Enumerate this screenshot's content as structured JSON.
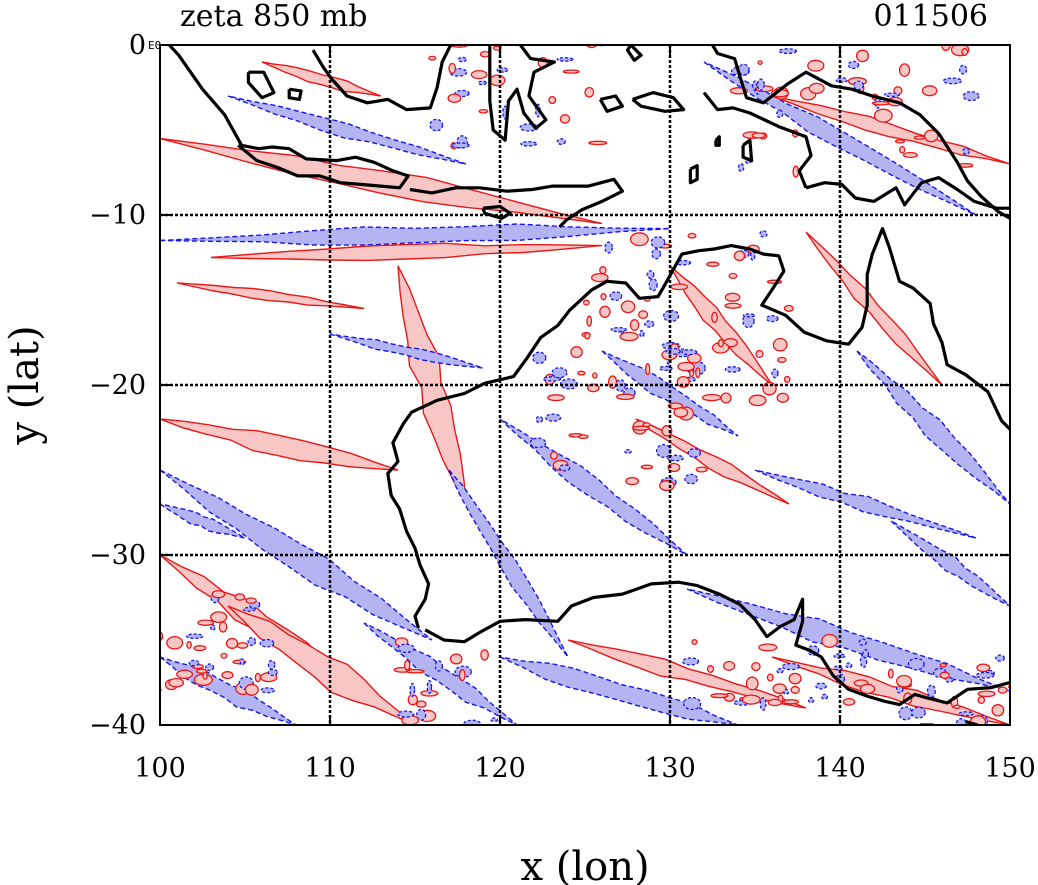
{
  "header": {
    "title": "zeta 850 mb",
    "timestamp": "011506",
    "corner_label": "E0"
  },
  "chart_data": {
    "type": "heatmap",
    "variable": "zeta",
    "level": "850 mb",
    "xlabel": "x (lon)",
    "ylabel": "y (lat)",
    "xlim": [
      100,
      150
    ],
    "ylim": [
      -40,
      0
    ],
    "x_ticks": [
      100,
      110,
      120,
      130,
      140,
      150
    ],
    "y_ticks": [
      0,
      -10,
      -20,
      -30,
      -40
    ],
    "x_tick_labels": [
      "100",
      "110",
      "120",
      "130",
      "140",
      "150"
    ],
    "y_tick_labels": [
      "0",
      "−10",
      "−20",
      "−30",
      "−40"
    ],
    "grid": true,
    "colors": {
      "positive_fill": "#f9c6c6",
      "negative_fill": "#b4b4f2",
      "positive_contour": "#e81818",
      "negative_contour": "#1818e6",
      "coastline": "#000000"
    },
    "coastline": [
      {
        "region": "australia_west_north",
        "points": [
          [
            115.2,
            -34.3
          ],
          [
            115.0,
            -33.6
          ],
          [
            115.6,
            -32.6
          ],
          [
            115.8,
            -31.7
          ],
          [
            115.3,
            -30.6
          ],
          [
            115.0,
            -29.6
          ],
          [
            114.5,
            -28.6
          ],
          [
            114.1,
            -27.3
          ],
          [
            113.6,
            -26.5
          ],
          [
            113.4,
            -25.2
          ],
          [
            114.0,
            -24.5
          ],
          [
            113.7,
            -23.4
          ],
          [
            114.3,
            -22.3
          ],
          [
            114.8,
            -21.6
          ],
          [
            116.3,
            -20.9
          ],
          [
            117.9,
            -20.5
          ],
          [
            119.1,
            -19.9
          ],
          [
            120.8,
            -19.5
          ],
          [
            121.6,
            -18.4
          ],
          [
            122.4,
            -17.2
          ],
          [
            123.4,
            -16.5
          ],
          [
            124.1,
            -15.6
          ],
          [
            125.4,
            -14.4
          ],
          [
            126.3,
            -13.9
          ],
          [
            127.4,
            -14.0
          ],
          [
            128.2,
            -14.9
          ],
          [
            129.3,
            -14.8
          ],
          [
            129.7,
            -14.1
          ],
          [
            130.2,
            -13.2
          ],
          [
            130.7,
            -12.3
          ],
          [
            131.7,
            -12.1
          ],
          [
            132.6,
            -12.0
          ],
          [
            133.6,
            -11.8
          ],
          [
            134.7,
            -12.0
          ],
          [
            135.5,
            -12.3
          ],
          [
            136.4,
            -12.4
          ],
          [
            136.7,
            -13.3
          ],
          [
            136.0,
            -14.4
          ],
          [
            135.4,
            -15.3
          ],
          [
            136.8,
            -15.9
          ],
          [
            137.9,
            -16.9
          ],
          [
            139.2,
            -17.4
          ],
          [
            140.5,
            -17.6
          ],
          [
            141.3,
            -16.6
          ],
          [
            141.6,
            -15.3
          ],
          [
            141.6,
            -13.5
          ],
          [
            141.9,
            -12.3
          ],
          [
            142.5,
            -10.8
          ],
          [
            142.9,
            -11.9
          ],
          [
            143.5,
            -13.9
          ],
          [
            144.3,
            -14.3
          ],
          [
            145.3,
            -15.2
          ],
          [
            145.5,
            -16.4
          ],
          [
            146.0,
            -17.5
          ],
          [
            146.3,
            -18.8
          ],
          [
            147.4,
            -19.4
          ],
          [
            148.7,
            -20.4
          ],
          [
            149.5,
            -22.1
          ],
          [
            150.0,
            -22.6
          ]
        ]
      },
      {
        "region": "australia_south",
        "points": [
          [
            115.6,
            -34.4
          ],
          [
            116.7,
            -35.0
          ],
          [
            117.9,
            -35.1
          ],
          [
            118.9,
            -34.5
          ],
          [
            120.0,
            -33.9
          ],
          [
            121.5,
            -33.8
          ],
          [
            123.4,
            -33.9
          ],
          [
            124.2,
            -33.0
          ],
          [
            125.5,
            -32.5
          ],
          [
            127.2,
            -32.3
          ],
          [
            128.9,
            -31.7
          ],
          [
            130.5,
            -31.6
          ],
          [
            131.6,
            -31.8
          ],
          [
            132.9,
            -32.3
          ],
          [
            134.1,
            -32.9
          ],
          [
            135.0,
            -33.8
          ],
          [
            135.7,
            -34.8
          ],
          [
            136.5,
            -34.2
          ],
          [
            137.3,
            -33.8
          ],
          [
            137.8,
            -32.6
          ],
          [
            137.8,
            -33.9
          ],
          [
            137.4,
            -35.3
          ],
          [
            138.2,
            -35.6
          ],
          [
            138.9,
            -36.0
          ],
          [
            139.6,
            -37.1
          ],
          [
            140.5,
            -37.9
          ],
          [
            141.6,
            -38.3
          ],
          [
            142.6,
            -38.6
          ],
          [
            143.5,
            -38.8
          ],
          [
            144.4,
            -38.2
          ],
          [
            145.1,
            -38.4
          ],
          [
            146.3,
            -38.7
          ],
          [
            147.5,
            -37.9
          ],
          [
            148.9,
            -37.8
          ],
          [
            150.0,
            -37.5
          ]
        ]
      },
      {
        "region": "java_sumatra",
        "points": [
          [
            102.5,
            -2.6
          ],
          [
            103.8,
            -4.1
          ],
          [
            104.8,
            -5.9
          ],
          [
            105.8,
            -6.1
          ],
          [
            106.6,
            -6.0
          ],
          [
            107.6,
            -6.1
          ],
          [
            108.6,
            -6.7
          ],
          [
            110.4,
            -6.8
          ],
          [
            111.5,
            -6.6
          ],
          [
            112.6,
            -6.9
          ],
          [
            113.7,
            -7.4
          ],
          [
            114.6,
            -7.7
          ],
          [
            114.1,
            -8.4
          ],
          [
            113.0,
            -8.3
          ],
          [
            111.8,
            -8.2
          ],
          [
            110.6,
            -8.1
          ],
          [
            109.4,
            -7.7
          ],
          [
            108.1,
            -7.7
          ],
          [
            106.9,
            -7.2
          ],
          [
            105.7,
            -6.8
          ],
          [
            104.6,
            -5.9
          ]
        ]
      },
      {
        "region": "sumatra_north",
        "points": [
          [
            100.0,
            0.6
          ],
          [
            101.1,
            -0.6
          ],
          [
            102.5,
            -2.6
          ]
        ]
      },
      {
        "region": "lesser_sunda",
        "points": [
          [
            114.7,
            -8.5
          ],
          [
            116.0,
            -8.7
          ],
          [
            117.4,
            -8.4
          ],
          [
            118.8,
            -8.4
          ],
          [
            120.4,
            -8.6
          ],
          [
            121.9,
            -8.5
          ],
          [
            123.1,
            -8.3
          ],
          [
            124.1,
            -8.3
          ],
          [
            125.2,
            -8.3
          ],
          [
            126.7,
            -7.9
          ],
          [
            127.2,
            -8.6
          ],
          [
            126.0,
            -9.2
          ],
          [
            124.8,
            -9.7
          ],
          [
            123.9,
            -10.3
          ],
          [
            123.5,
            -10.7
          ]
        ]
      },
      {
        "region": "sumba",
        "points": [
          [
            119.0,
            -9.6
          ],
          [
            120.0,
            -9.5
          ],
          [
            120.6,
            -9.9
          ],
          [
            120.1,
            -10.2
          ],
          [
            119.1,
            -9.9
          ],
          [
            119.0,
            -9.6
          ]
        ]
      },
      {
        "region": "borneo_south",
        "points": [
          [
            109.0,
            -0.3
          ],
          [
            109.6,
            -1.3
          ],
          [
            110.1,
            -2.0
          ],
          [
            111.0,
            -3.0
          ],
          [
            112.2,
            -3.4
          ],
          [
            113.4,
            -3.2
          ],
          [
            114.5,
            -3.8
          ],
          [
            115.9,
            -3.7
          ],
          [
            116.3,
            -2.5
          ],
          [
            116.6,
            -1.0
          ],
          [
            117.1,
            0.0
          ]
        ]
      },
      {
        "region": "sulawesi",
        "points": [
          [
            119.4,
            0.0
          ],
          [
            119.4,
            -1.5
          ],
          [
            119.4,
            -3.3
          ],
          [
            119.6,
            -5.0
          ],
          [
            120.3,
            -5.6
          ],
          [
            120.5,
            -3.3
          ],
          [
            121.0,
            -2.6
          ],
          [
            121.4,
            -4.0
          ],
          [
            122.1,
            -4.9
          ],
          [
            122.7,
            -4.4
          ],
          [
            121.7,
            -3.0
          ],
          [
            122.0,
            -1.6
          ],
          [
            123.2,
            -1.0
          ],
          [
            121.8,
            -0.8
          ],
          [
            121.2,
            0.0
          ]
        ]
      },
      {
        "region": "new_guinea",
        "points": [
          [
            132.5,
            0.0
          ],
          [
            132.8,
            -0.5
          ],
          [
            133.8,
            -0.8
          ],
          [
            134.1,
            -1.8
          ],
          [
            134.5,
            -3.1
          ],
          [
            135.5,
            -3.4
          ],
          [
            136.9,
            -2.3
          ],
          [
            138.0,
            -1.6
          ],
          [
            139.5,
            -2.4
          ],
          [
            140.7,
            -2.6
          ],
          [
            141.9,
            -3.0
          ],
          [
            143.5,
            -3.4
          ],
          [
            144.7,
            -4.1
          ],
          [
            145.8,
            -5.2
          ],
          [
            146.9,
            -6.9
          ],
          [
            147.5,
            -8.0
          ],
          [
            148.3,
            -8.9
          ],
          [
            149.3,
            -9.8
          ],
          [
            150.0,
            -10.2
          ]
        ]
      },
      {
        "region": "new_guinea_south",
        "points": [
          [
            138.0,
            -8.4
          ],
          [
            139.1,
            -8.1
          ],
          [
            140.1,
            -8.2
          ],
          [
            140.9,
            -9.0
          ],
          [
            142.0,
            -9.2
          ],
          [
            143.3,
            -8.4
          ],
          [
            143.8,
            -9.4
          ],
          [
            144.8,
            -8.1
          ],
          [
            145.8,
            -7.8
          ],
          [
            146.9,
            -8.5
          ],
          [
            147.9,
            -9.2
          ],
          [
            149.2,
            -9.6
          ],
          [
            150.0,
            -9.6
          ]
        ]
      },
      {
        "region": "new_guinea_southwest",
        "points": [
          [
            138.0,
            -8.4
          ],
          [
            137.6,
            -7.4
          ],
          [
            138.3,
            -6.5
          ],
          [
            138.0,
            -5.4
          ],
          [
            136.4,
            -4.8
          ],
          [
            134.7,
            -4.0
          ],
          [
            133.7,
            -3.7
          ],
          [
            132.8,
            -3.8
          ],
          [
            132.0,
            -2.8
          ]
        ]
      },
      {
        "region": "seram",
        "points": [
          [
            127.8,
            -3.2
          ],
          [
            129.0,
            -2.8
          ],
          [
            130.2,
            -3.1
          ],
          [
            130.8,
            -3.8
          ],
          [
            129.7,
            -3.9
          ],
          [
            128.3,
            -3.6
          ],
          [
            127.8,
            -3.2
          ]
        ]
      },
      {
        "region": "buru",
        "points": [
          [
            125.9,
            -3.2
          ],
          [
            126.8,
            -3.0
          ],
          [
            127.2,
            -3.6
          ],
          [
            126.3,
            -3.9
          ],
          [
            125.9,
            -3.2
          ]
        ]
      },
      {
        "region": "halmahera",
        "points": [
          [
            127.7,
            0.0
          ],
          [
            128.3,
            -0.6
          ],
          [
            127.9,
            -0.9
          ],
          [
            127.5,
            -0.3
          ],
          [
            127.7,
            0.0
          ]
        ]
      },
      {
        "region": "tanimbar",
        "points": [
          [
            131.2,
            -7.3
          ],
          [
            131.6,
            -7.1
          ],
          [
            131.6,
            -7.9
          ],
          [
            131.2,
            -8.1
          ],
          [
            131.2,
            -7.3
          ]
        ]
      },
      {
        "region": "aru",
        "points": [
          [
            134.3,
            -5.9
          ],
          [
            134.7,
            -5.6
          ],
          [
            134.8,
            -6.8
          ],
          [
            134.3,
            -6.6
          ],
          [
            134.3,
            -5.9
          ]
        ]
      },
      {
        "region": "kai",
        "points": [
          [
            132.7,
            -5.6
          ],
          [
            132.9,
            -5.4
          ],
          [
            132.9,
            -5.9
          ],
          [
            132.7,
            -5.9
          ],
          [
            132.7,
            -5.6
          ]
        ]
      },
      {
        "region": "bangka",
        "points": [
          [
            105.2,
            -1.6
          ],
          [
            106.1,
            -1.6
          ],
          [
            106.7,
            -2.8
          ],
          [
            106.0,
            -3.1
          ],
          [
            105.2,
            -2.2
          ],
          [
            105.2,
            -1.6
          ]
        ]
      },
      {
        "region": "belitung",
        "points": [
          [
            107.6,
            -2.6
          ],
          [
            108.3,
            -2.7
          ],
          [
            108.2,
            -3.2
          ],
          [
            107.6,
            -3.1
          ],
          [
            107.6,
            -2.6
          ]
        ]
      },
      {
        "region": "tasmania",
        "points": [
          [
            144.7,
            -40.0
          ],
          [
            145.5,
            -40.0
          ]
        ]
      },
      {
        "region": "tasmania_east",
        "points": [
          [
            147.4,
            -39.8
          ],
          [
            148.1,
            -40.0
          ]
        ]
      }
    ]
  }
}
